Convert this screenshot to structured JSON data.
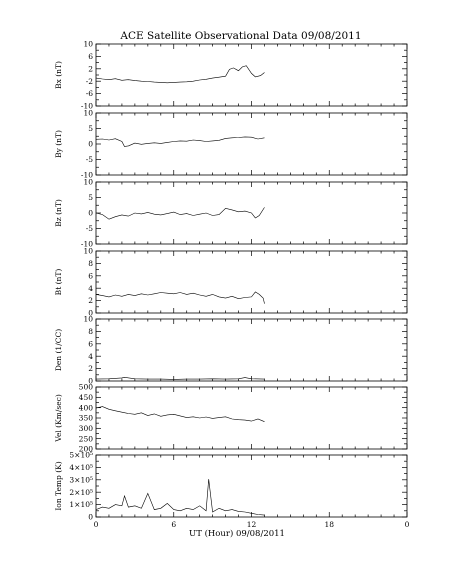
{
  "title": "ACE Satellite Observational Data   09/08/2011",
  "xlabel": "UT (Hour)  09/08/2011",
  "chart_data": [
    {
      "type": "line",
      "ylabel": "Bx (nT)",
      "ylim": [
        -10,
        10
      ],
      "yticks": [
        "10",
        "6",
        "2",
        "-2",
        "-6",
        "-10"
      ],
      "ytick_values": [
        10,
        6,
        2,
        -2,
        -6,
        -10
      ],
      "series": [
        {
          "x": [
            0,
            0.5,
            1,
            1.5,
            2,
            2.5,
            3,
            3.5,
            4,
            4.5,
            5,
            5.5,
            6,
            6.5,
            7,
            7.5,
            8,
            8.5,
            9,
            9.5,
            10,
            10.3,
            10.6,
            11,
            11.3,
            11.6,
            12,
            12.3,
            12.7,
            13
          ],
          "y": [
            -1,
            -1.3,
            -1.5,
            -1.2,
            -1.7,
            -1.5,
            -1.8,
            -2,
            -2.1,
            -2.3,
            -2.4,
            -2.5,
            -2.4,
            -2.3,
            -2.2,
            -2,
            -1.6,
            -1.4,
            -1,
            -0.7,
            -0.4,
            1.8,
            2.3,
            1.4,
            2.6,
            3,
            0.5,
            -0.6,
            -0.2,
            0.8
          ]
        }
      ]
    },
    {
      "type": "line",
      "ylabel": "By (nT)",
      "ylim": [
        -10,
        10
      ],
      "yticks": [
        "10",
        "5",
        "0",
        "-5",
        "-10"
      ],
      "ytick_values": [
        10,
        5,
        0,
        -5,
        -10
      ],
      "series": [
        {
          "x": [
            0,
            0.5,
            1,
            1.5,
            2,
            2.2,
            2.5,
            3,
            3.5,
            4,
            4.5,
            5,
            5.5,
            6,
            6.5,
            7,
            7.5,
            8,
            8.5,
            9,
            9.5,
            10,
            10.5,
            11,
            11.5,
            12,
            12.5,
            13
          ],
          "y": [
            1.5,
            1.6,
            1.3,
            1.7,
            0.8,
            -0.8,
            -0.6,
            0.3,
            -0.1,
            0.2,
            0.4,
            0.2,
            0.5,
            0.8,
            1,
            0.9,
            1.3,
            1.1,
            0.8,
            1,
            1.2,
            1.8,
            2,
            2.1,
            2.3,
            2.2,
            1.6,
            2
          ]
        }
      ]
    },
    {
      "type": "line",
      "ylabel": "Bz (nT)",
      "ylim": [
        -10,
        10
      ],
      "yticks": [
        "10",
        "5",
        "0",
        "-5",
        "-10"
      ],
      "ytick_values": [
        10,
        5,
        0,
        -5,
        -10
      ],
      "series": [
        {
          "x": [
            0,
            0.5,
            1,
            1.5,
            2,
            2.5,
            3,
            3.5,
            4,
            4.5,
            5,
            5.5,
            6,
            6.5,
            7,
            7.5,
            8,
            8.5,
            9,
            9.5,
            10,
            10.5,
            11,
            11.5,
            12,
            12.3,
            12.6,
            13
          ],
          "y": [
            0,
            -0.5,
            -2,
            -1.2,
            -0.6,
            -1,
            0,
            -0.3,
            0.2,
            -0.4,
            -0.6,
            -0.2,
            0.3,
            -0.5,
            -0.2,
            -0.8,
            -0.4,
            0,
            -0.8,
            -0.5,
            1.5,
            1,
            0.4,
            0.6,
            0,
            -1.6,
            -0.8,
            1.8
          ]
        }
      ]
    },
    {
      "type": "line",
      "ylabel": "Bt (nT)",
      "ylim": [
        0,
        10
      ],
      "yticks": [
        "10",
        "8",
        "6",
        "4",
        "2",
        "0"
      ],
      "ytick_values": [
        10,
        8,
        6,
        4,
        2,
        0
      ],
      "series": [
        {
          "x": [
            0,
            0.5,
            1,
            1.5,
            2,
            2.5,
            3,
            3.5,
            4,
            4.5,
            5,
            5.5,
            6,
            6.5,
            7,
            7.5,
            8,
            8.5,
            9,
            9.5,
            10,
            10.5,
            11,
            11.5,
            12,
            12.3,
            12.6,
            12.9,
            13
          ],
          "y": [
            3,
            2.8,
            2.6,
            2.9,
            2.7,
            3,
            2.8,
            3.1,
            2.9,
            3.1,
            3.3,
            3.2,
            3.1,
            3.3,
            3,
            3.2,
            2.9,
            2.7,
            3,
            2.6,
            2.4,
            2.7,
            2.3,
            2.5,
            2.6,
            3.4,
            3,
            2.4,
            1.5
          ]
        }
      ]
    },
    {
      "type": "line",
      "ylabel": "Den (1/CC)",
      "ylim": [
        0,
        10
      ],
      "yticks": [
        "10",
        "8",
        "6",
        "4",
        "2",
        "0"
      ],
      "ytick_values": [
        10,
        8,
        6,
        4,
        2,
        0
      ],
      "series": [
        {
          "x": [
            0,
            1,
            2,
            2.2,
            3,
            4,
            5,
            6,
            7,
            8,
            9,
            10,
            11,
            11.5,
            12,
            13
          ],
          "y": [
            0.3,
            0.35,
            0.5,
            0.6,
            0.35,
            0.3,
            0.3,
            0.25,
            0.3,
            0.3,
            0.35,
            0.3,
            0.35,
            0.55,
            0.35,
            0.3
          ]
        }
      ]
    },
    {
      "type": "line",
      "ylabel": "Vel (Km/sec)",
      "ylim": [
        200,
        500
      ],
      "yticks": [
        "500",
        "450",
        "400",
        "350",
        "300",
        "250",
        "200"
      ],
      "ytick_values": [
        500,
        450,
        400,
        350,
        300,
        250,
        200
      ],
      "series": [
        {
          "x": [
            0,
            0.5,
            1,
            1.5,
            2,
            2.5,
            3,
            3.5,
            4,
            4.5,
            5,
            5.5,
            6,
            6.5,
            7,
            7.5,
            8,
            8.5,
            9,
            9.5,
            10,
            10.5,
            11,
            11.5,
            12,
            12.5,
            13
          ],
          "y": [
            398,
            405,
            392,
            385,
            378,
            372,
            368,
            375,
            362,
            370,
            358,
            365,
            368,
            360,
            352,
            356,
            350,
            355,
            348,
            352,
            356,
            345,
            342,
            340,
            335,
            345,
            332
          ]
        }
      ]
    },
    {
      "type": "line",
      "ylabel": "Ion Temp (K)",
      "ylim": [
        0,
        500000
      ],
      "yticks": [
        "5×10⁵",
        "4×10⁵",
        "3×10⁵",
        "2×10⁵",
        "1×10⁵",
        "0"
      ],
      "ytick_values": [
        500000,
        400000,
        300000,
        200000,
        100000,
        0
      ],
      "series": [
        {
          "x": [
            0,
            0.5,
            1,
            1.5,
            2,
            2.2,
            2.5,
            3,
            3.5,
            4,
            4.5,
            5,
            5.5,
            6,
            6.5,
            7,
            7.5,
            8,
            8.5,
            8.7,
            9,
            9.5,
            10,
            10.5,
            11,
            11.5,
            12,
            12.5,
            13
          ],
          "y": [
            60000,
            80000,
            70000,
            100000,
            90000,
            170000,
            80000,
            90000,
            70000,
            190000,
            60000,
            70000,
            110000,
            60000,
            50000,
            70000,
            60000,
            90000,
            50000,
            305000,
            40000,
            70000,
            50000,
            60000,
            45000,
            40000,
            30000,
            20000,
            15000
          ]
        }
      ]
    }
  ],
  "xticks": [
    "0",
    "6",
    "12",
    "18",
    "0"
  ],
  "xtick_values": [
    0,
    6,
    12,
    18,
    24
  ],
  "xlim": [
    0,
    24
  ]
}
